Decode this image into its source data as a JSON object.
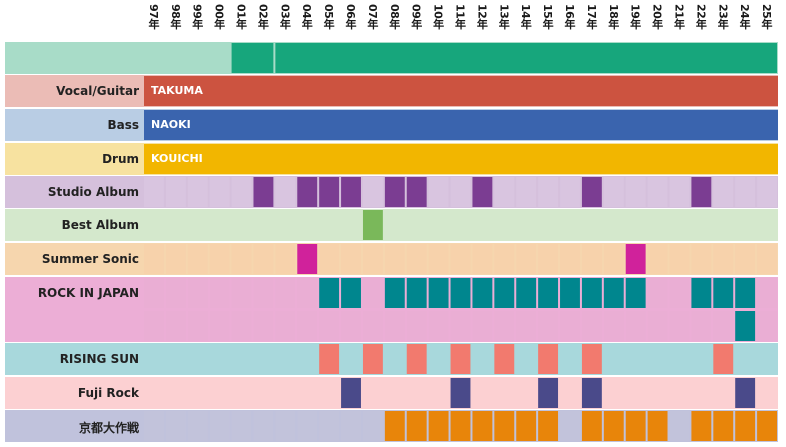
{
  "years": [
    "97年",
    "98年",
    "99年",
    "00年",
    "01年",
    "02年",
    "03年",
    "04年",
    "05年",
    "06年",
    "07年",
    "08年",
    "09年",
    "10年",
    "11年",
    "12年",
    "13年",
    "14年",
    "15年",
    "16年",
    "17年",
    "18年",
    "19年",
    "20年",
    "21年",
    "22年",
    "23年",
    "24年",
    "25年"
  ],
  "rows": [
    {
      "key": "top",
      "label": "",
      "bg": "#a8dcc8",
      "cell": "#a8dcc8",
      "mark": "#17a67c",
      "type": "segments",
      "segments": [
        {
          "from": 4,
          "to": 5
        },
        {
          "from": 6,
          "to": 28
        }
      ]
    },
    {
      "key": "vocal",
      "label": "Vocal/Guitar",
      "bg": "#ebbcb6",
      "type": "member",
      "member": "TAKUMA",
      "color": "#cc5340"
    },
    {
      "key": "bass",
      "label": "Bass",
      "bg": "#b9cde4",
      "type": "member",
      "member": "NAOKI",
      "color": "#3a64ae"
    },
    {
      "key": "drum",
      "label": "Drum",
      "bg": "#f7e2a0",
      "type": "member",
      "member": "KOUICHI",
      "color": "#f2b600"
    },
    {
      "key": "studio",
      "label": "Studio Album",
      "bg": "#d5c0dc",
      "cell": "#d9c5e0",
      "mark": "#7b3d92",
      "type": "cells",
      "marks": [
        5,
        7,
        8,
        9,
        11,
        12,
        15,
        20,
        25
      ]
    },
    {
      "key": "best",
      "label": "Best Album",
      "bg": "#d4e8cc",
      "cell": "#d4e8cc",
      "mark": "#7ab85a",
      "type": "cells",
      "marks": [
        10
      ]
    },
    {
      "key": "summer",
      "label": "Summer Sonic",
      "bg": "#f6d6ae",
      "cell": "#f7d2ab",
      "mark": "#d0229b",
      "type": "cells",
      "marks": [
        7,
        22
      ]
    },
    {
      "key": "rij",
      "label": "ROCK IN JAPAN",
      "bg": "#ecaed6",
      "cell": "#eaaed4",
      "mark": "#00868e",
      "type": "tall",
      "marks": [
        8,
        9,
        11,
        12,
        13,
        14,
        15,
        16,
        17,
        18,
        19,
        20,
        21,
        22,
        25,
        26,
        27
      ],
      "lower_marks": [
        27
      ]
    },
    {
      "key": "rising",
      "label": "RISING SUN",
      "bg": "#a8d8dc",
      "cell": "#a8d8dc",
      "mark": "#f27a6e",
      "type": "cells",
      "marks": [
        8,
        10,
        12,
        14,
        16,
        18,
        20,
        26
      ]
    },
    {
      "key": "fuji",
      "label": "Fuji Rock",
      "bg": "#fcd0d2",
      "cell": "#fcd0d2",
      "mark": "#4a4a8a",
      "type": "cells",
      "marks": [
        9,
        14,
        18,
        20,
        27
      ]
    },
    {
      "key": "kyoto",
      "label": "京都大作戦",
      "bg": "#c0c2dc",
      "cell": "#c2c3db",
      "mark": "#e8850a",
      "type": "cells",
      "marks": [
        11,
        12,
        13,
        14,
        15,
        16,
        17,
        18,
        20,
        21,
        22,
        23,
        25,
        26,
        27,
        28
      ]
    }
  ]
}
